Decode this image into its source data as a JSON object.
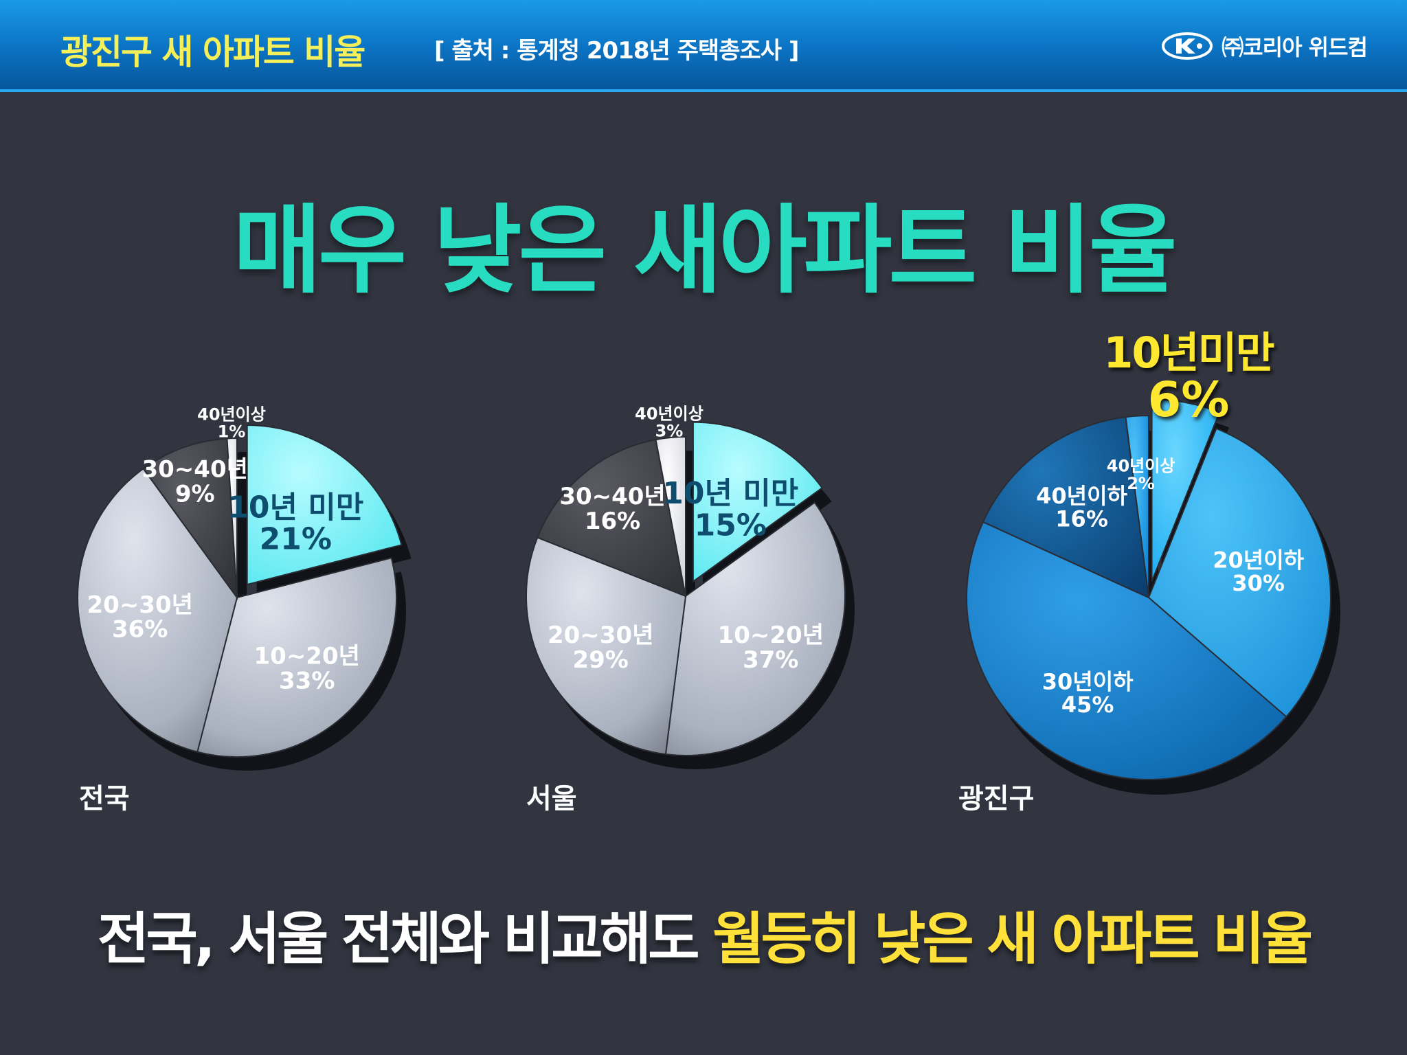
{
  "header": {
    "title": "광진구 새 아파트 비율",
    "source": "[ 출처 : 통계청 2018년 주택총조사 ]",
    "brand": "㈜코리아 위드컴"
  },
  "headline": "매우 낮은 새아파트 비율",
  "callout": {
    "label": "10년미만",
    "value": "6%"
  },
  "conclusion": {
    "part1": "전국, 서울 전체와 비교해도",
    "part2": "월등히 낮은 새 아파트 비율"
  },
  "colors": {
    "header_title": "#f5f05a",
    "headline": "#27dcc0",
    "highlight_slice": "#7ef6fb",
    "silver_slice": "#b4bac6",
    "dark_slice": "#45464c",
    "light_slice": "#ecedf4",
    "blue_slice": "#1f9ee8",
    "conclusion_highlight": "#ffe13a"
  },
  "chart_data": [
    {
      "type": "pie",
      "title": "전국",
      "categories": [
        "10년 미만",
        "10~20년",
        "20~30년",
        "30~40년",
        "40년이상"
      ],
      "values": [
        21,
        33,
        36,
        9,
        1
      ],
      "labels": [
        "21%",
        "33%",
        "36%",
        "9%",
        "1%"
      ],
      "exploded": [
        true,
        false,
        false,
        false,
        false
      ]
    },
    {
      "type": "pie",
      "title": "서울",
      "categories": [
        "10년 미만",
        "10~20년",
        "20~30년",
        "30~40년",
        "40년이상"
      ],
      "values": [
        15,
        37,
        29,
        16,
        3
      ],
      "labels": [
        "15%",
        "37%",
        "29%",
        "16%",
        "3%"
      ],
      "exploded": [
        true,
        false,
        false,
        false,
        false
      ]
    },
    {
      "type": "pie",
      "title": "광진구",
      "categories": [
        "10년미만",
        "20년이하",
        "30년이하",
        "40년이하",
        "40년이상"
      ],
      "values": [
        6,
        30,
        45,
        16,
        2
      ],
      "labels": [
        "6%",
        "30%",
        "45%",
        "16%",
        "2%"
      ],
      "exploded": [
        true,
        false,
        false,
        false,
        false
      ]
    }
  ]
}
